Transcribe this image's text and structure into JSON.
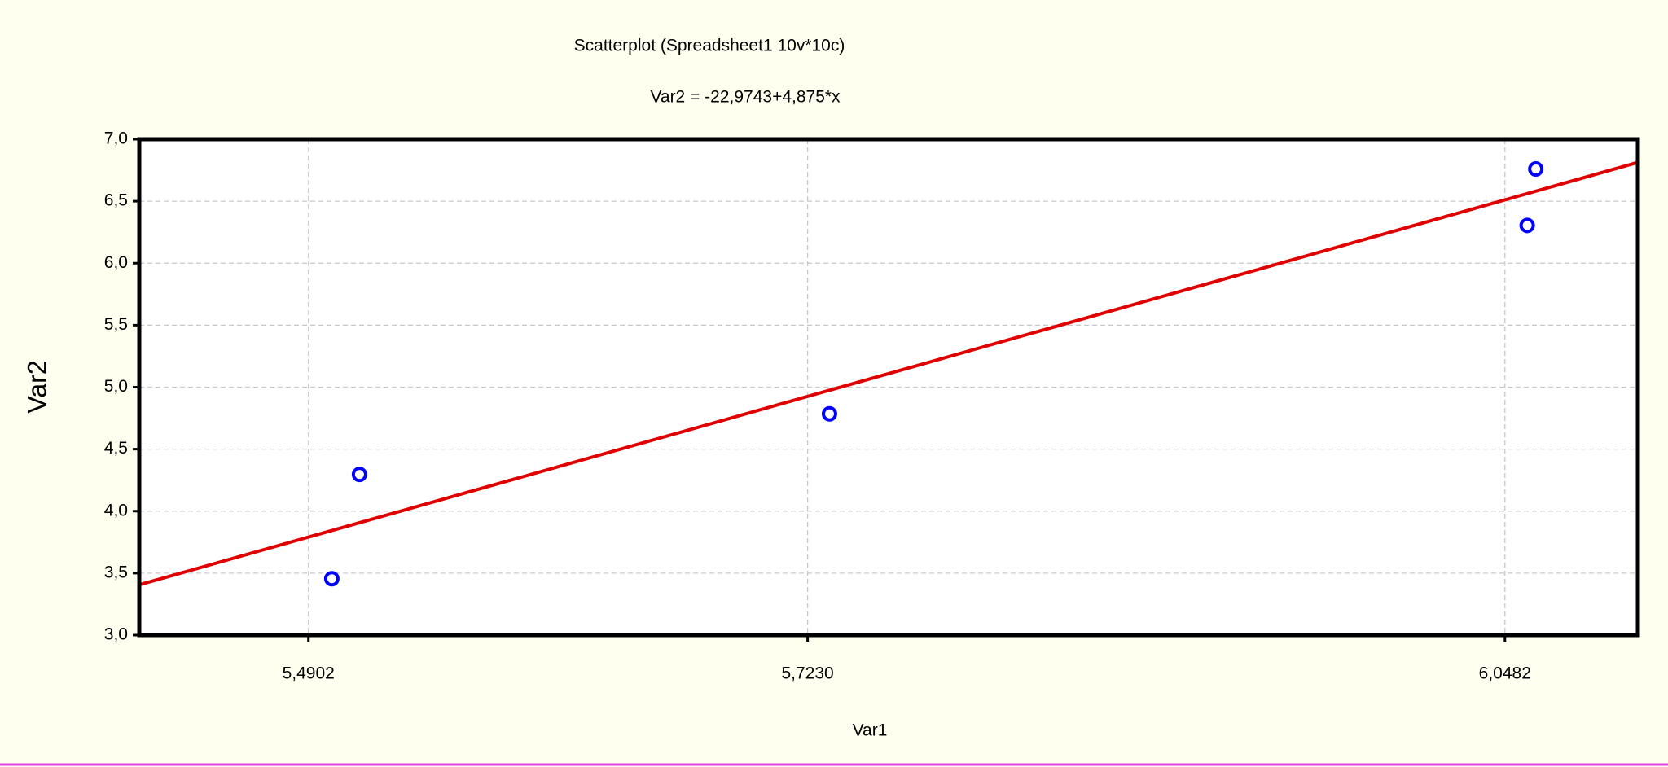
{
  "chart_data": {
    "type": "scatter",
    "title": "Scatterplot (Spreadsheet1 10v*10c)",
    "subtitle": "Var2 = -22,9743+4,875*x",
    "x_label": "Var1",
    "y_label": "Var2",
    "x": [
      5.5011,
      5.514,
      5.7332,
      6.0586,
      6.0626
    ],
    "values": [
      3.455,
      4.296,
      4.785,
      6.305,
      6.76
    ],
    "color": "#0000ff",
    "fit": {
      "intercept": -22.9743,
      "slope": 4.875,
      "color": "#e00000"
    },
    "xlim": [
      5.4113,
      6.1102
    ],
    "xticks": [
      {
        "value": 5.4902,
        "label": "5,4902"
      },
      {
        "value": 5.723,
        "label": "5,7230"
      },
      {
        "value": 6.0482,
        "label": "6,0482"
      }
    ],
    "ylim": [
      3.0,
      7.0
    ],
    "yticks": [
      {
        "value": 3.0,
        "label": "3,0"
      },
      {
        "value": 3.5,
        "label": "3,5"
      },
      {
        "value": 4.0,
        "label": "4,0"
      },
      {
        "value": 4.5,
        "label": "4,5"
      },
      {
        "value": 5.0,
        "label": "5,0"
      },
      {
        "value": 5.5,
        "label": "5,5"
      },
      {
        "value": 6.0,
        "label": "6,0"
      },
      {
        "value": 6.5,
        "label": "6,5"
      },
      {
        "value": 7.0,
        "label": "7,0"
      }
    ],
    "grid": true
  }
}
